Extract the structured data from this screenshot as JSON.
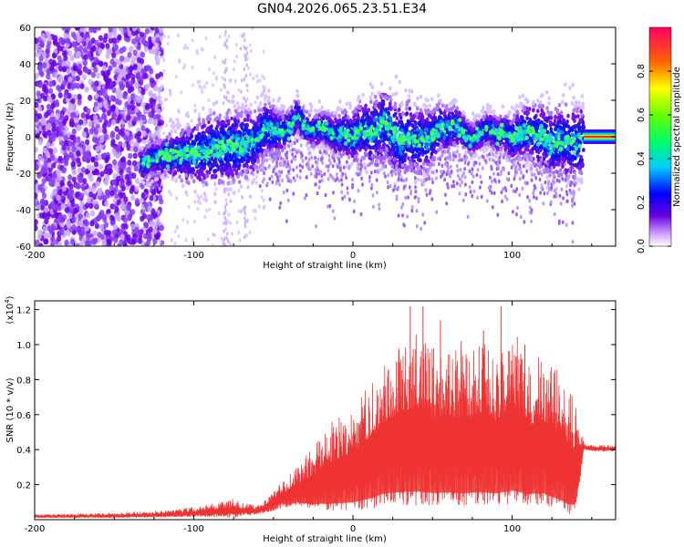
{
  "title": "GN04.2026.065.23.51.E34",
  "chart_data": [
    {
      "type": "heatmap",
      "name": "spectrogram",
      "title": "GN04.2026.065.23.51.E34",
      "xlabel": "Height of straight line (km)",
      "ylabel": "Frequency (Hz)",
      "xlim": [
        -200,
        165
      ],
      "ylim": [
        -60,
        60
      ],
      "xticks": [
        -200,
        -100,
        0,
        100
      ],
      "yticks": [
        -60,
        -40,
        -20,
        0,
        20,
        40,
        60
      ],
      "colorbar": {
        "label": "Normalized spectral amplitude",
        "range": [
          0.0,
          1.0
        ],
        "ticks": [
          0.0,
          0.2,
          0.4,
          0.6,
          0.8
        ],
        "tick_labels": [
          "0.0",
          "0.2",
          "0.4",
          "0.6",
          "0.8"
        ]
      },
      "ridge": {
        "x": [
          -133,
          -125,
          -115,
          -105,
          -95,
          -85,
          -75,
          -65,
          -60,
          -55,
          -50,
          -45,
          -40,
          -35,
          -30,
          -25,
          -20,
          -15,
          -10,
          -5,
          0,
          5,
          10,
          15,
          20,
          25,
          30,
          35,
          40,
          45,
          50,
          55,
          60,
          65,
          70,
          75,
          80,
          85,
          90,
          95,
          100,
          105,
          110,
          115,
          120,
          125,
          130,
          135,
          140,
          145,
          150,
          155,
          160,
          165
        ],
        "y": [
          -15,
          -12,
          -10,
          -10,
          -8,
          -6,
          -5,
          -4,
          -1,
          5,
          3,
          2,
          4,
          12,
          5,
          3,
          5,
          3,
          1,
          2,
          0,
          4,
          2,
          3,
          8,
          1,
          -3,
          0,
          -3,
          -2,
          0,
          5,
          4,
          6,
          2,
          -2,
          2,
          5,
          1,
          3,
          -2,
          2,
          3,
          0,
          0,
          -5,
          -2,
          -3,
          -4,
          -2,
          0,
          0,
          0,
          0
        ]
      }
    },
    {
      "type": "line",
      "name": "snr",
      "xlabel": "Height of straight line (km)",
      "ylabel": "SNR (10 * v/v)",
      "multiplier_label": "(x10",
      "multiplier_exp": "4",
      "xlim": [
        -200,
        165
      ],
      "ylim": [
        0,
        1.25
      ],
      "xticks": [
        -200,
        -100,
        0,
        100
      ],
      "yticks": [
        0.2,
        0.4,
        0.6,
        0.8,
        1.0,
        1.2
      ],
      "series": [
        {
          "name": "SNR",
          "color": "#ee3333",
          "envelope_x": [
            -200,
            -150,
            -125,
            -110,
            -95,
            -85,
            -75,
            -70,
            -60,
            -55,
            -45,
            -35,
            -25,
            -15,
            -5,
            0,
            10,
            20,
            30,
            40,
            50,
            60,
            70,
            80,
            90,
            100,
            110,
            120,
            130,
            135,
            140,
            145,
            150,
            165
          ],
          "envelope_lo": [
            0.01,
            0.01,
            0.012,
            0.015,
            0.015,
            0.015,
            0.01,
            0.02,
            0.03,
            0.04,
            0.06,
            0.08,
            0.06,
            0.05,
            0.05,
            0.05,
            0.06,
            0.08,
            0.08,
            0.08,
            0.08,
            0.08,
            0.08,
            0.08,
            0.08,
            0.08,
            0.08,
            0.08,
            0.05,
            0.03,
            0.03,
            0.4,
            0.39,
            0.39
          ],
          "envelope_hi": [
            0.03,
            0.04,
            0.05,
            0.06,
            0.08,
            0.1,
            0.12,
            0.1,
            0.08,
            0.12,
            0.22,
            0.3,
            0.42,
            0.55,
            0.62,
            0.66,
            0.8,
            0.95,
            1.05,
            1.1,
            0.98,
            1.02,
            0.96,
            1.05,
            0.95,
            1.15,
            0.92,
            0.95,
            0.85,
            0.75,
            0.7,
            0.44,
            0.43,
            0.43
          ],
          "peak_spikes": [
            [
              36,
              1.22
            ],
            [
              44,
              1.22
            ],
            [
              55,
              1.14
            ],
            [
              68,
              1.02
            ],
            [
              82,
              1.08
            ],
            [
              93,
              1.22
            ],
            [
              108,
              1.0
            ]
          ]
        }
      ]
    }
  ]
}
